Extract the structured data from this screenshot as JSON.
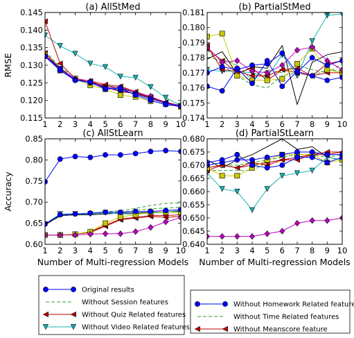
{
  "chart_data": [
    {
      "id": "a",
      "type": "line",
      "title": "(a)  AllStMed",
      "xlabel": "",
      "ylabel": "RMSE",
      "xlim": [
        1,
        10
      ],
      "ylim": [
        0.115,
        0.145
      ],
      "xticks": [
        1,
        2,
        3,
        4,
        5,
        6,
        7,
        8,
        9,
        10
      ],
      "yticks": [
        "0.115",
        "0.120",
        "0.125",
        "0.130",
        "0.135",
        "0.140",
        "0.145"
      ],
      "x": [
        1,
        2,
        3,
        4,
        5,
        6,
        7,
        8,
        9,
        10
      ],
      "series": [
        {
          "key": "original",
          "values": [
            0.1325,
            0.1285,
            0.1257,
            0.1252,
            0.1232,
            0.1235,
            0.1215,
            0.12,
            0.1188,
            0.1183
          ]
        },
        {
          "key": "session",
          "values": [
            0.134,
            0.1295,
            0.1265,
            0.1248,
            0.124,
            0.1225,
            0.122,
            0.1205,
            0.1195,
            0.118
          ]
        },
        {
          "key": "quiz",
          "values": [
            0.1425,
            0.1305,
            0.1262,
            0.1255,
            0.1245,
            0.124,
            0.1225,
            0.121,
            0.1195,
            0.1185
          ]
        },
        {
          "key": "video",
          "values": [
            0.1385,
            0.1355,
            0.1333,
            0.1305,
            0.1295,
            0.1268,
            0.1265,
            0.1238,
            0.1208,
            0.1185
          ]
        },
        {
          "key": "homework",
          "values": [
            0.1325,
            0.129,
            0.1258,
            0.125,
            0.1235,
            0.123,
            0.1218,
            0.1205,
            0.1192,
            0.1183
          ]
        },
        {
          "key": "time",
          "values": [
            0.133,
            0.1288,
            0.1262,
            0.125,
            0.1238,
            0.1228,
            0.1218,
            0.1205,
            0.1195,
            0.1182
          ]
        },
        {
          "key": "meanscore",
          "values": [
            0.1335,
            0.1292,
            0.126,
            0.1255,
            0.1238,
            0.1225,
            0.122,
            0.1208,
            0.1193,
            0.1182
          ]
        },
        {
          "key": "black",
          "values": [
            0.133,
            0.129,
            0.126,
            0.125,
            0.1242,
            0.1235,
            0.1222,
            0.1208,
            0.1195,
            0.1183
          ]
        },
        {
          "key": "yellow",
          "values": [
            0.133,
            0.1285,
            0.1262,
            0.1243,
            0.1232,
            0.1215,
            0.121,
            0.1198,
            0.119,
            0.1182
          ]
        },
        {
          "key": "magenta",
          "values": [
            0.1328,
            0.1288,
            0.1262,
            0.1255,
            0.1235,
            0.1238,
            0.1222,
            0.1212,
            0.1192,
            0.1185
          ]
        }
      ]
    },
    {
      "id": "b",
      "type": "line",
      "title": "(b)  PartialStMed",
      "xlabel": "",
      "ylabel": "",
      "xlim": [
        1,
        10
      ],
      "ylim": [
        0.174,
        0.181
      ],
      "xticks": [
        1,
        2,
        3,
        4,
        5,
        6,
        7,
        8,
        9,
        10
      ],
      "yticks": [
        "0.174",
        "0.175",
        "0.176",
        "0.177",
        "0.178",
        "0.179",
        "0.180",
        "0.181"
      ],
      "x": [
        1,
        2,
        3,
        4,
        5,
        6,
        7,
        8,
        9,
        10
      ],
      "series": [
        {
          "key": "original",
          "values": [
            0.1761,
            0.1758,
            0.1773,
            0.1763,
            0.1778,
            0.1761,
            0.1771,
            0.1768,
            0.1765,
            0.1767
          ]
        },
        {
          "key": "session",
          "values": [
            0.1785,
            0.1775,
            0.1768,
            0.1762,
            0.176,
            0.1768,
            0.177,
            0.1768,
            0.1772,
            0.1771
          ]
        },
        {
          "key": "quiz",
          "values": [
            0.1788,
            0.1772,
            0.1771,
            0.1768,
            0.1768,
            0.1772,
            0.177,
            0.1768,
            0.177,
            0.177
          ]
        },
        {
          "key": "video",
          "values": [
            0.1772,
            0.1771,
            0.1771,
            0.177,
            0.1767,
            0.1782,
            0.1768,
            0.1791,
            0.1808,
            0.1809
          ]
        },
        {
          "key": "homework",
          "values": [
            0.177,
            0.1774,
            0.1772,
            0.1775,
            0.1776,
            0.1783,
            0.177,
            0.178,
            0.1775,
            0.1778
          ]
        },
        {
          "key": "time",
          "values": [
            0.178,
            0.1779,
            0.1775,
            0.1765,
            0.1772,
            0.177,
            0.1775,
            0.1772,
            0.177,
            0.1776
          ]
        },
        {
          "key": "meanscore",
          "values": [
            0.1786,
            0.1778,
            0.177,
            0.1773,
            0.1765,
            0.1772,
            0.1773,
            0.1768,
            0.1776,
            0.1778
          ]
        },
        {
          "key": "black",
          "values": [
            0.1779,
            0.1784,
            0.1769,
            0.1774,
            0.1773,
            0.1788,
            0.1749,
            0.1777,
            0.1782,
            0.1784
          ]
        },
        {
          "key": "yellow",
          "values": [
            0.1794,
            0.1796,
            0.1768,
            0.1765,
            0.1765,
            0.1766,
            0.1776,
            0.1786,
            0.1772,
            0.177
          ]
        },
        {
          "key": "magenta",
          "values": [
            0.1787,
            0.1777,
            0.1778,
            0.1771,
            0.177,
            0.1775,
            0.1785,
            0.1787,
            0.1778,
            0.1772
          ]
        }
      ]
    },
    {
      "id": "c",
      "type": "line",
      "title": "(c)  AllStLearn",
      "xlabel": "Number of Multi-regression Models",
      "ylabel": "Accuracy",
      "xlim": [
        1,
        10
      ],
      "ylim": [
        0.6,
        0.85
      ],
      "xticks": [
        1,
        2,
        3,
        4,
        5,
        6,
        7,
        8,
        9,
        10
      ],
      "yticks": [
        "0.60",
        "0.65",
        "0.70",
        "0.75",
        "0.80",
        "0.85"
      ],
      "x": [
        1,
        2,
        3,
        4,
        5,
        6,
        7,
        8,
        9,
        10
      ],
      "series": [
        {
          "key": "original",
          "values": [
            0.748,
            0.802,
            0.808,
            0.806,
            0.812,
            0.812,
            0.815,
            0.82,
            0.822,
            0.82
          ]
        },
        {
          "key": "session",
          "values": [
            0.648,
            0.666,
            0.672,
            0.672,
            0.677,
            0.68,
            0.685,
            0.692,
            0.697,
            0.698
          ]
        },
        {
          "key": "quiz",
          "values": [
            0.622,
            0.622,
            0.624,
            0.628,
            0.643,
            0.658,
            0.662,
            0.666,
            0.664,
            0.666
          ]
        },
        {
          "key": "video",
          "values": [
            0.648,
            0.672,
            0.672,
            0.672,
            0.675,
            0.672,
            0.672,
            0.674,
            0.676,
            0.68
          ]
        },
        {
          "key": "homework",
          "values": [
            0.648,
            0.67,
            0.672,
            0.674,
            0.676,
            0.676,
            0.678,
            0.678,
            0.68,
            0.682
          ]
        },
        {
          "key": "time",
          "values": [
            0.648,
            0.668,
            0.67,
            0.672,
            0.674,
            0.676,
            0.68,
            0.684,
            0.686,
            0.688
          ]
        },
        {
          "key": "meanscore",
          "values": [
            0.622,
            0.622,
            0.624,
            0.63,
            0.645,
            0.66,
            0.664,
            0.668,
            0.668,
            0.67
          ]
        },
        {
          "key": "black",
          "values": [
            0.646,
            0.668,
            0.67,
            0.67,
            0.672,
            0.674,
            0.674,
            0.676,
            0.676,
            0.678
          ]
        },
        {
          "key": "yellow",
          "values": [
            0.622,
            0.622,
            0.624,
            0.63,
            0.65,
            0.665,
            0.67,
            0.676,
            0.676,
            0.676
          ]
        },
        {
          "key": "magenta",
          "values": [
            0.622,
            0.622,
            0.622,
            0.624,
            0.625,
            0.625,
            0.63,
            0.64,
            0.653,
            0.663
          ]
        }
      ]
    },
    {
      "id": "d",
      "type": "line",
      "title": "(d)  PartialStLearn",
      "xlabel": "Number of Multi-regression Models",
      "ylabel": "",
      "xlim": [
        1,
        10
      ],
      "ylim": [
        0.64,
        0.68
      ],
      "xticks": [
        1,
        2,
        3,
        4,
        5,
        6,
        7,
        8,
        9,
        10
      ],
      "yticks": [
        "0.640",
        "0.645",
        "0.650",
        "0.655",
        "0.660",
        "0.665",
        "0.670",
        "0.675",
        "0.680"
      ],
      "x": [
        1,
        2,
        3,
        4,
        5,
        6,
        7,
        8,
        9,
        10
      ],
      "series": [
        {
          "key": "original",
          "values": [
            0.671,
            0.672,
            0.674,
            0.67,
            0.669,
            0.67,
            0.673,
            0.673,
            0.671,
            0.673
          ]
        },
        {
          "key": "session",
          "values": [
            0.668,
            0.668,
            0.668,
            0.668,
            0.671,
            0.672,
            0.673,
            0.674,
            0.673,
            0.674
          ]
        },
        {
          "key": "quiz",
          "values": [
            0.668,
            0.67,
            0.669,
            0.671,
            0.67,
            0.672,
            0.672,
            0.674,
            0.674,
            0.675
          ]
        },
        {
          "key": "video",
          "values": [
            0.667,
            0.661,
            0.66,
            0.653,
            0.661,
            0.666,
            0.667,
            0.668,
            0.673,
            0.672
          ]
        },
        {
          "key": "homework",
          "values": [
            0.67,
            0.671,
            0.672,
            0.672,
            0.673,
            0.674,
            0.675,
            0.675,
            0.674,
            0.674
          ]
        },
        {
          "key": "time",
          "values": [
            0.669,
            0.67,
            0.67,
            0.671,
            0.672,
            0.673,
            0.674,
            0.674,
            0.675,
            0.675
          ]
        },
        {
          "key": "meanscore",
          "values": [
            0.669,
            0.67,
            0.669,
            0.67,
            0.671,
            0.672,
            0.673,
            0.674,
            0.675,
            0.675
          ]
        },
        {
          "key": "black",
          "values": [
            0.672,
            0.669,
            0.672,
            0.674,
            0.677,
            0.68,
            0.676,
            0.677,
            0.673,
            0.672
          ]
        },
        {
          "key": "yellow",
          "values": [
            0.669,
            0.666,
            0.666,
            0.669,
            0.672,
            0.674,
            0.674,
            0.674,
            0.671,
            0.672
          ]
        },
        {
          "key": "magenta",
          "values": [
            0.643,
            0.643,
            0.643,
            0.643,
            0.644,
            0.645,
            0.648,
            0.649,
            0.649,
            0.65
          ]
        }
      ]
    }
  ],
  "styles": {
    "original": {
      "color": "#0000ff",
      "dash": "",
      "marker": "circle"
    },
    "session": {
      "color": "#2ca02c",
      "dash": "5,3",
      "marker": "none"
    },
    "quiz": {
      "color": "#c00000",
      "dash": "",
      "marker": "triangle-left"
    },
    "video": {
      "color": "#17b3b3",
      "dash": "",
      "marker": "triangle-down"
    },
    "homework": {
      "color": "#0000ff",
      "dash": "",
      "marker": "circle"
    },
    "time": {
      "color": "#2ca02c",
      "dash": "5,3",
      "marker": "none"
    },
    "meanscore": {
      "color": "#c00000",
      "dash": "",
      "marker": "triangle-left"
    },
    "black": {
      "color": "#000000",
      "dash": "",
      "marker": "none"
    },
    "yellow": {
      "color": "#c8c800",
      "dash": "",
      "marker": "square"
    },
    "magenta": {
      "color": "#c000c0",
      "dash": "",
      "marker": "diamond"
    }
  },
  "legend_left": {
    "items": [
      {
        "key": "original",
        "label": "Original results"
      },
      {
        "key": "session",
        "label": "Without Session features"
      },
      {
        "key": "quiz",
        "label": "Without Quiz Related features"
      },
      {
        "key": "video",
        "label": "Without Video Related features"
      }
    ]
  },
  "legend_right": {
    "items": [
      {
        "key": "homework",
        "label": "Without Homework Related features"
      },
      {
        "key": "time",
        "label": "Without Time Related features"
      },
      {
        "key": "meanscore",
        "label": "Without Meanscore feature"
      }
    ]
  }
}
